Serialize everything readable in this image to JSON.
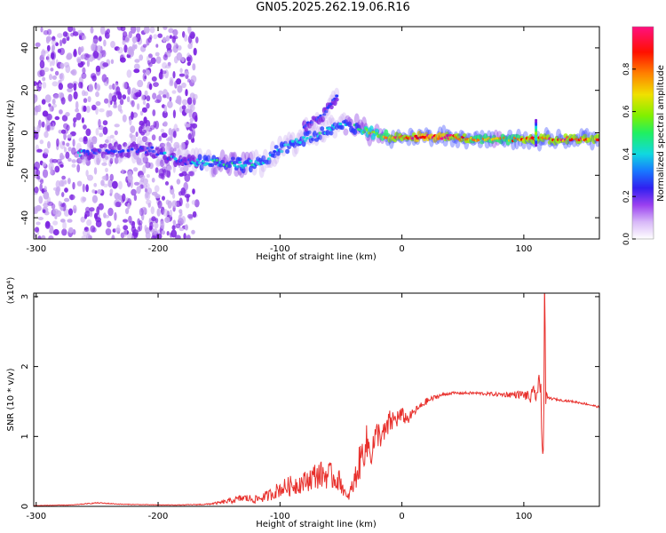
{
  "figure_title": "GN05.2025.262.19.06.R16",
  "chart_data": [
    {
      "type": "heatmap",
      "title": "GN05.2025.262.19.06.R16",
      "xlabel": "Height of straight line (km)",
      "ylabel": "Frequency (Hz)",
      "xlim": [
        -302,
        162
      ],
      "ylim": [
        -50,
        50
      ],
      "xticks": [
        -300,
        -200,
        -100,
        0,
        100
      ],
      "yticks": [
        -40,
        -20,
        0,
        20,
        40
      ],
      "colorbar": {
        "label": "Normalized spectral amplitude",
        "range": [
          0.0,
          1.0
        ],
        "ticks": [
          0.0,
          0.2,
          0.4,
          0.6,
          0.8
        ],
        "colormap": [
          "#ffffff",
          "#c8a8f0",
          "#7a20e0",
          "#2838ff",
          "#14d4e0",
          "#30f070",
          "#a0f000",
          "#f0d000",
          "#ff7000",
          "#ff0000",
          "#ff1080"
        ]
      },
      "noise_region": {
        "x": [
          -302,
          -168
        ],
        "y": [
          -50,
          50
        ],
        "amplitude": 0.15
      },
      "signal_ridge": [
        {
          "x": -265,
          "y": -10,
          "amp": 0.35
        },
        {
          "x": -245,
          "y": -8,
          "amp": 0.3
        },
        {
          "x": -205,
          "y": -8,
          "amp": 0.3
        },
        {
          "x": -190,
          "y": -12,
          "amp": 0.32
        },
        {
          "x": -170,
          "y": -14,
          "amp": 0.35
        },
        {
          "x": -150,
          "y": -14,
          "amp": 0.45
        },
        {
          "x": -130,
          "y": -15,
          "amp": 0.45
        },
        {
          "x": -115,
          "y": -14,
          "amp": 0.4
        },
        {
          "x": -100,
          "y": -8,
          "amp": 0.38
        },
        {
          "x": -85,
          "y": -4,
          "amp": 0.4
        },
        {
          "x": -70,
          "y": -1,
          "amp": 0.42
        },
        {
          "x": -55,
          "y": 3,
          "amp": 0.4
        },
        {
          "x": -40,
          "y": 3,
          "amp": 0.45
        },
        {
          "x": -25,
          "y": 0,
          "amp": 0.55
        },
        {
          "x": -10,
          "y": -2,
          "amp": 0.8
        },
        {
          "x": 0,
          "y": -2,
          "amp": 0.9
        },
        {
          "x": 20,
          "y": -2,
          "amp": 0.95
        },
        {
          "x": 40,
          "y": -2,
          "amp": 0.92
        },
        {
          "x": 60,
          "y": -3,
          "amp": 0.75
        },
        {
          "x": 80,
          "y": -3,
          "amp": 0.7
        },
        {
          "x": 100,
          "y": -3,
          "amp": 0.8
        },
        {
          "x": 120,
          "y": -3,
          "amp": 0.88
        },
        {
          "x": 140,
          "y": -3,
          "amp": 0.85
        },
        {
          "x": 162,
          "y": -3,
          "amp": 0.82
        }
      ],
      "signal_branch": [
        {
          "x": -80,
          "y": 3,
          "amp": 0.3
        },
        {
          "x": -65,
          "y": 8,
          "amp": 0.28
        },
        {
          "x": -52,
          "y": 18,
          "amp": 0.3
        }
      ],
      "spike": {
        "x": 110,
        "y_range": [
          -6,
          6
        ],
        "amp": 0.6
      }
    },
    {
      "type": "line",
      "xlabel": "Height of straight line (km)",
      "ylabel": "SNR (10 * v/v)",
      "y_multiplier": "(x10⁴)",
      "xlim": [
        -302,
        162
      ],
      "ylim": [
        0,
        3.05
      ],
      "xticks": [
        -300,
        -200,
        -100,
        0,
        100
      ],
      "yticks": [
        0,
        1,
        2,
        3
      ],
      "line_color": "#e8302c",
      "x": [
        -302,
        -270,
        -250,
        -230,
        -200,
        -180,
        -160,
        -150,
        -140,
        -130,
        -120,
        -110,
        -100,
        -90,
        -80,
        -70,
        -60,
        -50,
        -45,
        -40,
        -35,
        -30,
        -25,
        -20,
        -15,
        -10,
        -5,
        0,
        5,
        10,
        20,
        30,
        40,
        60,
        80,
        100,
        105,
        110,
        114,
        116,
        117,
        118,
        120,
        130,
        140,
        150,
        162
      ],
      "y": [
        0.01,
        0.02,
        0.05,
        0.03,
        0.02,
        0.02,
        0.03,
        0.05,
        0.08,
        0.12,
        0.1,
        0.15,
        0.25,
        0.3,
        0.35,
        0.45,
        0.45,
        0.35,
        0.1,
        0.3,
        0.6,
        0.9,
        0.8,
        1.05,
        1.0,
        1.2,
        1.25,
        1.3,
        1.25,
        1.35,
        1.5,
        1.58,
        1.62,
        1.62,
        1.6,
        1.6,
        1.55,
        1.62,
        1.7,
        0.6,
        3.0,
        1.55,
        1.55,
        1.52,
        1.5,
        1.47,
        1.42
      ],
      "noise_amplitude": [
        0.003,
        0.004,
        0.008,
        0.005,
        0.004,
        0.004,
        0.01,
        0.02,
        0.04,
        0.06,
        0.06,
        0.08,
        0.12,
        0.15,
        0.15,
        0.2,
        0.2,
        0.15,
        0.05,
        0.15,
        0.25,
        0.3,
        0.25,
        0.2,
        0.2,
        0.18,
        0.15,
        0.12,
        0.08,
        0.06,
        0.05,
        0.03,
        0.02,
        0.02,
        0.03,
        0.06,
        0.1,
        0.15,
        0.25,
        0.5,
        0.5,
        0.1,
        0.02,
        0.015,
        0.015,
        0.015,
        0.015
      ]
    }
  ]
}
